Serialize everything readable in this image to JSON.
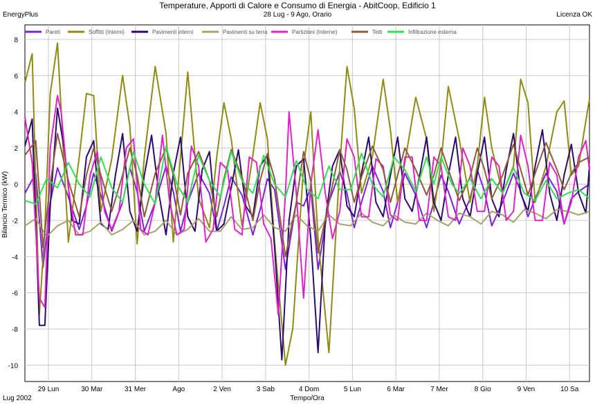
{
  "header": {
    "title": "Temperature, Apporti di Calore e Consumo di Energia - AbitCoop, Edificio 1",
    "subtitle": "28 Lug - 9 Ago, Orario",
    "left_tag": "EnergyPlus",
    "right_tag": "Licenza OK"
  },
  "footer": {
    "period": "Lug 2002"
  },
  "chart_data": {
    "type": "line",
    "xlabel": "Tempo/Ora",
    "ylabel": "Bilancio Termico (kW)",
    "ylim": [
      -10.9,
      8.8
    ],
    "xlim": [
      0,
      312
    ],
    "yticks": [
      -10,
      -8,
      -6,
      -4,
      -2,
      0,
      2,
      4,
      6,
      8
    ],
    "xticks": [
      {
        "x": 13,
        "label": "29 Lun"
      },
      {
        "x": 37,
        "label": "30 Mar"
      },
      {
        "x": 61,
        "label": "31 Mer"
      },
      {
        "x": 85,
        "label": "Ago"
      },
      {
        "x": 109,
        "label": "2 Ven"
      },
      {
        "x": 133,
        "label": "3 Sab"
      },
      {
        "x": 157,
        "label": "4 Dom"
      },
      {
        "x": 181,
        "label": "5 Lun"
      },
      {
        "x": 205,
        "label": "6 Mar"
      },
      {
        "x": 229,
        "label": "7 Mer"
      },
      {
        "x": 253,
        "label": "8 Gio"
      },
      {
        "x": 277,
        "label": "9 Ven"
      },
      {
        "x": 301,
        "label": "10 Sa"
      }
    ],
    "grid": true,
    "legend_position": "top",
    "series": [
      {
        "name": "Pareti",
        "color": "#7b22d6",
        "x": [
          0,
          6,
          10,
          14,
          18,
          24,
          30,
          34,
          38,
          42,
          48,
          54,
          58,
          62,
          66,
          72,
          78,
          82,
          86,
          90,
          96,
          102,
          106,
          110,
          114,
          120,
          126,
          130,
          134,
          138,
          144,
          150,
          154,
          158,
          162,
          168,
          174,
          178,
          182,
          186,
          192,
          198,
          202,
          206,
          210,
          216,
          222,
          226,
          230,
          234,
          240,
          246,
          250,
          254,
          258,
          264,
          270,
          274,
          278,
          282,
          288,
          294,
          298,
          302,
          306,
          312
        ],
        "y": [
          -0.5,
          0.6,
          -4.6,
          -1.0,
          0.9,
          -0.7,
          -2.5,
          -1.2,
          0.6,
          -0.6,
          -2.6,
          -1.0,
          0.9,
          -0.4,
          -2.6,
          -1.0,
          1.0,
          -0.4,
          -2.6,
          -1.0,
          0.6,
          -0.5,
          -2.6,
          -1.2,
          0.4,
          -0.6,
          -2.8,
          -1.4,
          0.3,
          -0.3,
          -4.7,
          -1.0,
          -1.2,
          -0.2,
          -4.7,
          -1.0,
          0.7,
          -0.5,
          -2.4,
          -1.0,
          1.0,
          -0.4,
          -2.4,
          -1.0,
          0.6,
          -0.6,
          -2.4,
          -1.0,
          0.5,
          -0.4,
          -2.2,
          -0.8,
          0.8,
          -0.4,
          -2.3,
          -1.0,
          0.6,
          -0.4,
          -1.8,
          -0.8,
          0.6,
          -0.4,
          -2.2,
          -0.8,
          -0.4,
          0.0
        ]
      },
      {
        "name": "Soffitti (Interni)",
        "color": "#8f8a10",
        "x": [
          0,
          4,
          8,
          11,
          14,
          18,
          24,
          30,
          34,
          38,
          42,
          48,
          54,
          58,
          62,
          66,
          72,
          78,
          82,
          86,
          90,
          96,
          102,
          106,
          110,
          114,
          120,
          126,
          130,
          134,
          138,
          144,
          148,
          154,
          158,
          162,
          168,
          174,
          178,
          182,
          186,
          192,
          198,
          202,
          206,
          210,
          216,
          222,
          226,
          230,
          234,
          240,
          246,
          250,
          254,
          258,
          264,
          270,
          274,
          278,
          282,
          288,
          294,
          298,
          302,
          306,
          310,
          312
        ],
        "y": [
          5.6,
          7.2,
          -7.2,
          -2.5,
          5.0,
          7.8,
          -3.2,
          1.5,
          5.0,
          4.9,
          -1.5,
          1.4,
          6.0,
          3.2,
          -3.3,
          1.5,
          6.5,
          2.8,
          -3.2,
          1.5,
          6.2,
          -0.8,
          -2.4,
          1.5,
          4.5,
          2.5,
          -2.3,
          1.6,
          4.5,
          2.5,
          -3.2,
          -10.0,
          -8.0,
          1.0,
          4.0,
          -3.0,
          -9.3,
          1.0,
          6.5,
          4.2,
          -0.5,
          1.5,
          5.8,
          3.0,
          -1.0,
          1.2,
          4.8,
          2.5,
          -1.5,
          1.2,
          5.4,
          2.5,
          -1.0,
          1.0,
          4.8,
          2.0,
          -0.5,
          1.0,
          5.8,
          4.5,
          -1.0,
          1.0,
          4.0,
          4.6,
          0.5,
          1.0,
          3.5,
          4.7
        ]
      },
      {
        "name": "Pavimenti interni",
        "color": "#2b0a6b",
        "x": [
          0,
          4,
          8,
          11,
          14,
          18,
          22,
          26,
          30,
          34,
          38,
          42,
          46,
          50,
          54,
          58,
          62,
          66,
          70,
          74,
          78,
          82,
          86,
          90,
          94,
          98,
          102,
          106,
          110,
          114,
          118,
          122,
          126,
          130,
          134,
          138,
          142,
          146,
          150,
          154,
          158,
          162,
          166,
          170,
          174,
          178,
          182,
          186,
          190,
          194,
          198,
          202,
          206,
          210,
          214,
          218,
          222,
          226,
          230,
          234,
          238,
          242,
          246,
          250,
          254,
          258,
          262,
          266,
          270,
          274,
          278,
          282,
          286,
          290,
          294,
          298,
          302,
          306,
          310,
          312
        ],
        "y": [
          2.1,
          3.6,
          -7.8,
          -7.8,
          -1.2,
          4.2,
          1.8,
          -2.0,
          -2.2,
          1.5,
          2.4,
          -2.2,
          -2.5,
          0.5,
          2.8,
          -1.5,
          -2.6,
          0.5,
          2.7,
          -0.5,
          -2.8,
          0.6,
          2.6,
          -1.8,
          -2.6,
          0.8,
          1.8,
          -2.6,
          -2.2,
          -0.2,
          1.9,
          -1.2,
          -1.8,
          1.0,
          1.6,
          -3.5,
          -9.7,
          -2.0,
          1.0,
          1.4,
          -3.0,
          -9.3,
          -2.0,
          1.0,
          1.9,
          -1.2,
          -1.8,
          0.6,
          2.6,
          -1.0,
          -1.8,
          0.5,
          2.6,
          -0.8,
          -1.5,
          0.4,
          2.6,
          -1.0,
          -2.0,
          0.5,
          2.6,
          -0.8,
          -1.8,
          0.6,
          2.6,
          -0.8,
          -1.8,
          0.8,
          2.8,
          -0.5,
          -1.5,
          1.0,
          3.0,
          -0.5,
          -2.0,
          0.5,
          2.2,
          -0.5,
          -1.6,
          1.0
        ]
      },
      {
        "name": "Pavimenti su terra",
        "color": "#a8a068",
        "x": [
          0,
          6,
          12,
          18,
          24,
          30,
          36,
          42,
          48,
          54,
          60,
          66,
          72,
          78,
          84,
          90,
          96,
          102,
          108,
          114,
          120,
          126,
          132,
          138,
          144,
          150,
          156,
          162,
          168,
          174,
          180,
          186,
          192,
          198,
          204,
          210,
          216,
          222,
          228,
          234,
          240,
          246,
          252,
          258,
          264,
          270,
          276,
          282,
          288,
          294,
          300,
          306,
          312
        ],
        "y": [
          -2.3,
          -1.9,
          -2.9,
          -2.3,
          -2.0,
          -2.8,
          -2.6,
          -2.1,
          -2.8,
          -2.5,
          -2.0,
          -2.8,
          -2.6,
          -2.0,
          -2.8,
          -2.5,
          -1.9,
          -2.6,
          -2.6,
          -1.8,
          -2.5,
          -2.4,
          -1.7,
          -2.4,
          -2.6,
          -1.7,
          -2.3,
          -2.6,
          -1.7,
          -2.2,
          -2.3,
          -1.6,
          -2.1,
          -2.3,
          -1.7,
          -2.1,
          -2.2,
          -1.6,
          -2.0,
          -2.3,
          -1.6,
          -1.8,
          -2.2,
          -1.5,
          -1.7,
          -2.1,
          -1.4,
          -1.6,
          -1.9,
          -1.4,
          -1.5,
          -1.7,
          -1.5
        ]
      },
      {
        "name": "Partizioni (Interne)",
        "color": "#e020c8",
        "x": [
          0,
          4,
          8,
          11,
          14,
          18,
          20,
          24,
          28,
          32,
          36,
          40,
          44,
          48,
          52,
          56,
          60,
          64,
          68,
          72,
          76,
          80,
          84,
          88,
          92,
          96,
          100,
          104,
          108,
          112,
          116,
          120,
          124,
          128,
          132,
          136,
          140,
          144,
          146,
          150,
          154,
          158,
          162,
          166,
          170,
          174,
          178,
          182,
          186,
          190,
          194,
          198,
          202,
          206,
          210,
          214,
          218,
          222,
          226,
          230,
          234,
          238,
          242,
          246,
          250,
          254,
          258,
          262,
          266,
          270,
          274,
          278,
          282,
          286,
          290,
          294,
          298,
          302,
          306,
          310,
          312
        ],
        "y": [
          3.7,
          1.2,
          -6.3,
          -6.8,
          2.0,
          4.9,
          4.0,
          -0.2,
          -2.8,
          -2.8,
          0.5,
          1.8,
          -1.5,
          -2.5,
          -1.5,
          2.0,
          2.5,
          -2.5,
          -2.8,
          -1.0,
          2.7,
          -1.0,
          -2.8,
          -2.5,
          2.1,
          1.0,
          -3.2,
          -2.5,
          1.2,
          0.8,
          -2.5,
          -2.8,
          1.5,
          1.2,
          -2.2,
          -3.0,
          -7.2,
          -0.5,
          4.0,
          -0.5,
          -6.3,
          0.0,
          3.0,
          -0.5,
          -3.0,
          -1.5,
          2.5,
          1.5,
          -1.8,
          -1.8,
          1.4,
          1.0,
          -1.7,
          -2.0,
          1.5,
          1.5,
          -2.0,
          -2.0,
          1.5,
          1.0,
          -1.8,
          -2.0,
          2.0,
          1.0,
          -1.5,
          -1.5,
          1.5,
          1.0,
          -2.0,
          -1.5,
          2.7,
          1.0,
          -2.0,
          -2.0,
          1.2,
          0.5,
          -2.2,
          -1.0,
          1.5,
          2.4,
          0.8
        ]
      },
      {
        "name": "Tetti",
        "color": "#8c5a3c",
        "x": [
          0,
          6,
          10,
          14,
          18,
          24,
          30,
          34,
          38,
          42,
          48,
          54,
          58,
          62,
          66,
          72,
          78,
          82,
          86,
          90,
          96,
          102,
          106,
          110,
          114,
          120,
          126,
          130,
          134,
          138,
          144,
          150,
          154,
          158,
          162,
          168,
          174,
          178,
          182,
          186,
          192,
          198,
          202,
          206,
          210,
          216,
          222,
          226,
          230,
          234,
          240,
          246,
          250,
          254,
          258,
          264,
          270,
          274,
          278,
          282,
          288,
          294,
          298,
          302,
          306,
          312
        ],
        "y": [
          1.6,
          2.4,
          -3.5,
          0.0,
          2.8,
          0.2,
          -1.8,
          0.5,
          2.0,
          0.5,
          -1.5,
          0.5,
          2.0,
          0.5,
          -1.8,
          0.6,
          2.0,
          0.5,
          -1.7,
          0.6,
          1.8,
          0.2,
          -1.8,
          0.3,
          1.9,
          0.4,
          -2.0,
          0.2,
          1.7,
          0.3,
          -4.0,
          -1.0,
          1.8,
          0.2,
          -3.8,
          -1.0,
          1.9,
          0.8,
          -1.0,
          0.4,
          2.1,
          0.8,
          -1.0,
          0.5,
          2.0,
          0.8,
          -0.6,
          0.5,
          2.0,
          0.8,
          -0.9,
          0.4,
          2.0,
          0.8,
          -0.8,
          0.5,
          2.2,
          0.8,
          -0.6,
          0.6,
          2.3,
          0.8,
          -0.3,
          0.6,
          1.2,
          1.5
        ]
      },
      {
        "name": "Infiltrazione esterna",
        "color": "#33dd55",
        "x": [
          0,
          6,
          12,
          18,
          24,
          30,
          36,
          42,
          48,
          54,
          60,
          66,
          72,
          78,
          84,
          90,
          96,
          102,
          108,
          114,
          120,
          126,
          132,
          138,
          144,
          150,
          156,
          162,
          168,
          174,
          180,
          186,
          192,
          198,
          204,
          210,
          216,
          222,
          226,
          230,
          236,
          240,
          246,
          252,
          258,
          264,
          270,
          276,
          282,
          288,
          294,
          300,
          306,
          312
        ],
        "y": [
          -0.9,
          -1.1,
          0.3,
          -0.2,
          1.2,
          0.0,
          -0.7,
          1.5,
          -0.2,
          -1.0,
          1.8,
          0.0,
          -1.1,
          2.1,
          0.0,
          -1.0,
          1.6,
          0.2,
          -0.7,
          1.8,
          0.2,
          -0.5,
          1.6,
          0.0,
          -0.7,
          1.3,
          -0.3,
          -0.8,
          1.0,
          -0.3,
          -0.3,
          1.7,
          0.0,
          -0.7,
          1.5,
          0.8,
          -0.4,
          1.5,
          0.0,
          1.5,
          0.0,
          -0.5,
          0.3,
          -0.8,
          0.3,
          -0.5,
          0.9,
          -0.5,
          -0.9,
          0.2,
          -0.8,
          -0.5,
          -0.3,
          -0.8
        ]
      }
    ]
  }
}
